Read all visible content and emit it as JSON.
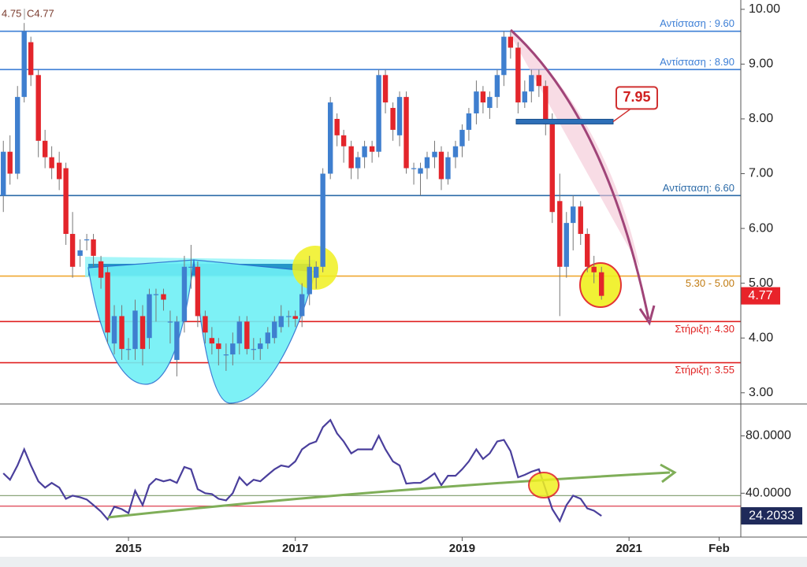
{
  "chart_data": [
    {
      "type": "candlestick",
      "ohlc_label": "4.75",
      "close_label": "C4.77",
      "up_color": "#3f7fcf",
      "down_color": "#e3252b",
      "x": [
        2013.5,
        2013.58,
        2013.67,
        2013.75,
        2013.83,
        2013.92,
        2014,
        2014.08,
        2014.17,
        2014.25,
        2014.33,
        2014.42,
        2014.5,
        2014.58,
        2014.67,
        2014.75,
        2014.83,
        2014.92,
        2015,
        2015.08,
        2015.17,
        2015.25,
        2015.33,
        2015.42,
        2015.5,
        2015.58,
        2015.67,
        2015.75,
        2015.83,
        2015.92,
        2016,
        2016.08,
        2016.17,
        2016.25,
        2016.33,
        2016.42,
        2016.5,
        2016.58,
        2016.67,
        2016.75,
        2016.83,
        2016.92,
        2017,
        2017.08,
        2017.17,
        2017.25,
        2017.33,
        2017.42,
        2017.5,
        2017.58,
        2017.67,
        2017.75,
        2017.83,
        2017.92,
        2018,
        2018.08,
        2018.17,
        2018.25,
        2018.33,
        2018.42,
        2018.5,
        2018.58,
        2018.67,
        2018.75,
        2018.83,
        2018.92,
        2019,
        2019.08,
        2019.17,
        2019.25,
        2019.33,
        2019.42,
        2019.5,
        2019.58,
        2019.67,
        2019.75,
        2019.83,
        2019.92,
        2020,
        2020.08,
        2020.17,
        2020.25,
        2020.33,
        2020.42,
        2020.5,
        2020.58,
        2020.67
      ],
      "open": [
        6.6,
        7.4,
        7.0,
        8.4,
        9.4,
        8.8,
        7.6,
        7.3,
        7.2,
        7.1,
        5.9,
        5.5,
        5.8,
        5.8,
        5.4,
        5.2,
        3.9,
        4.4,
        3.8,
        3.8,
        4.4,
        4.0,
        4.8,
        4.8,
        4.3,
        3.6,
        4.3,
        5.3,
        5.3,
        4.4,
        4.0,
        3.9,
        3.7,
        3.7,
        3.9,
        4.3,
        3.8,
        3.8,
        3.9,
        4.0,
        4.2,
        4.4,
        4.4,
        4.4,
        4.8,
        5.1,
        5.3,
        7.0,
        8.0,
        7.7,
        7.5,
        7.1,
        7.3,
        7.5,
        7.4,
        8.8,
        8.2,
        7.7,
        8.4,
        7.1,
        7.0,
        7.1,
        7.3,
        7.4,
        6.9,
        7.3,
        7.5,
        7.8,
        8.1,
        8.5,
        8.2,
        8.4,
        8.8,
        9.5,
        9.3,
        8.3,
        8.5,
        8.8,
        8.6,
        7.9,
        6.5,
        5.3,
        6.1,
        6.4,
        5.9,
        5.3,
        5.2
      ],
      "high": [
        7.6,
        7.7,
        8.6,
        9.75,
        9.5,
        8.9,
        7.8,
        7.5,
        7.4,
        7.2,
        6.3,
        5.8,
        5.9,
        5.9,
        5.5,
        5.3,
        4.6,
        4.6,
        4.0,
        4.7,
        4.6,
        4.9,
        4.9,
        4.9,
        4.5,
        4.4,
        5.5,
        5.7,
        5.4,
        4.5,
        4.2,
        4.0,
        3.9,
        4.1,
        4.4,
        4.4,
        4.0,
        4.0,
        4.2,
        4.4,
        4.6,
        4.5,
        4.5,
        5.0,
        5.5,
        5.4,
        7.1,
        8.4,
        8.1,
        7.8,
        7.6,
        7.4,
        7.6,
        7.6,
        8.9,
        8.9,
        8.3,
        8.5,
        8.5,
        7.2,
        7.2,
        7.4,
        7.6,
        7.5,
        7.4,
        7.6,
        7.9,
        8.2,
        8.7,
        8.6,
        8.5,
        8.9,
        9.6,
        9.6,
        9.4,
        8.7,
        8.9,
        8.9,
        8.7,
        8.1,
        7.0,
        6.3,
        6.6,
        6.5,
        6.0,
        5.5,
        5.3
      ],
      "low": [
        6.3,
        6.8,
        6.9,
        8.3,
        8.6,
        7.3,
        7.1,
        6.9,
        6.7,
        5.7,
        5.1,
        5.3,
        5.6,
        5.3,
        4.9,
        3.9,
        3.7,
        3.6,
        3.6,
        3.6,
        3.5,
        3.8,
        4.3,
        4.5,
        3.9,
        3.3,
        4.1,
        4.9,
        4.2,
        3.9,
        3.7,
        3.5,
        3.4,
        3.5,
        3.7,
        3.7,
        3.6,
        3.6,
        3.8,
        3.9,
        4.1,
        4.2,
        4.2,
        4.2,
        4.6,
        4.9,
        5.2,
        6.9,
        7.5,
        7.2,
        6.9,
        6.9,
        7.1,
        7.2,
        7.3,
        8.1,
        7.6,
        7.5,
        7.0,
        6.8,
        6.6,
        6.9,
        7.1,
        6.7,
        6.8,
        7.1,
        7.3,
        7.6,
        7.9,
        8.1,
        8.0,
        8.2,
        8.6,
        9.1,
        8.1,
        8.2,
        8.3,
        8.4,
        7.7,
        6.1,
        4.4,
        5.1,
        5.6,
        5.7,
        5.2,
        5.0,
        4.7
      ],
      "close": [
        7.4,
        7.0,
        8.4,
        9.6,
        8.8,
        7.6,
        7.3,
        7.1,
        6.9,
        5.9,
        5.3,
        5.6,
        5.8,
        5.5,
        5.1,
        4.1,
        4.4,
        3.8,
        3.8,
        4.5,
        3.8,
        4.8,
        4.8,
        4.7,
        4.3,
        4.3,
        5.3,
        5.3,
        4.4,
        4.1,
        3.9,
        3.8,
        3.7,
        3.9,
        4.3,
        3.8,
        3.8,
        3.9,
        4.1,
        4.3,
        4.4,
        4.4,
        4.35,
        4.8,
        5.3,
        5.3,
        7.0,
        8.3,
        7.7,
        7.5,
        7.1,
        7.3,
        7.5,
        7.4,
        8.8,
        8.3,
        7.8,
        8.4,
        7.1,
        7.1,
        7.1,
        7.3,
        7.4,
        6.9,
        7.3,
        7.5,
        7.8,
        8.1,
        8.5,
        8.3,
        8.4,
        8.8,
        9.5,
        9.3,
        8.3,
        8.5,
        8.8,
        8.6,
        7.9,
        6.3,
        5.3,
        6.1,
        6.4,
        5.9,
        5.3,
        5.2,
        4.77
      ],
      "xlim": [
        2013.46,
        2022.34
      ],
      "xticks": [
        2015,
        2017,
        2019,
        2021,
        {
          "value": 2022.08,
          "label": "Feb"
        }
      ],
      "ylim": [
        2.81,
        10.17
      ],
      "yticks": [
        {
          "value": 3,
          "label": "3.00"
        },
        {
          "value": 4,
          "label": "4.00"
        },
        {
          "value": 5,
          "label": "5.00"
        },
        {
          "value": 6,
          "label": "6.00"
        },
        {
          "value": 7,
          "label": "7.00"
        },
        {
          "value": 8,
          "label": "8.00"
        },
        {
          "value": 9,
          "label": "9.00"
        },
        {
          "value": 10,
          "label": "10.00"
        }
      ],
      "levels": [
        {
          "value": 9.6,
          "label": "Αντίσταση : 9.60",
          "color": "#3d7fd6"
        },
        {
          "value": 8.9,
          "label": "Αντίσταση : 8.90",
          "color": "#3d7fd6"
        },
        {
          "value": 6.6,
          "label": "Αντίσταση: 6.60",
          "color": "#2c6ba8"
        },
        {
          "value": 5.13,
          "label": "5.30 - 5.00",
          "color": "#f0a830"
        },
        {
          "value": 4.3,
          "label": "Στήριξη: 4.30",
          "color": "#e02020"
        },
        {
          "value": 3.55,
          "label": "Στήριξη: 3.55",
          "color": "#e02020"
        }
      ],
      "callout": 7.95,
      "last_price": 4.77
    },
    {
      "type": "line",
      "color": "#4a3f9c",
      "values": [
        53.9,
        49.4,
        59.4,
        70.6,
        59.4,
        48.3,
        43.9,
        47.2,
        43.9,
        36.1,
        38.3,
        37.2,
        35.6,
        31.7,
        27.2,
        21.7,
        30.6,
        28.9,
        26.1,
        41.7,
        31.7,
        45.6,
        50,
        48.3,
        49.4,
        47.2,
        58.3,
        56.7,
        42.8,
        40,
        39.4,
        36.1,
        35,
        40,
        51.1,
        45.6,
        49.4,
        48.3,
        52.8,
        56.7,
        59.4,
        58.3,
        62.2,
        70.6,
        74.4,
        76.1,
        86.1,
        91.1,
        81.7,
        76.1,
        67.8,
        70.6,
        70.6,
        70.6,
        80,
        70.6,
        62.2,
        59.4,
        46.7,
        47.2,
        47.2,
        50,
        53.9,
        45.6,
        52.2,
        52.2,
        56.7,
        62.2,
        70.6,
        63.9,
        67.8,
        76.1,
        77.2,
        69.4,
        51.1,
        52.8,
        55,
        56.7,
        42.8,
        28.9,
        20.6,
        31.7,
        38.3,
        36.1,
        29.4,
        27.8,
        24.2033
      ],
      "ylim": [
        9.4,
        100.6
      ],
      "yticks": [
        {
          "value": 40,
          "label": "40.0000"
        },
        {
          "value": 80,
          "label": "80.0000"
        }
      ],
      "hlines": [
        {
          "value": 38.3,
          "color": "#8aa57a"
        },
        {
          "value": 31,
          "color": "#e05060"
        }
      ]
    }
  ]
}
